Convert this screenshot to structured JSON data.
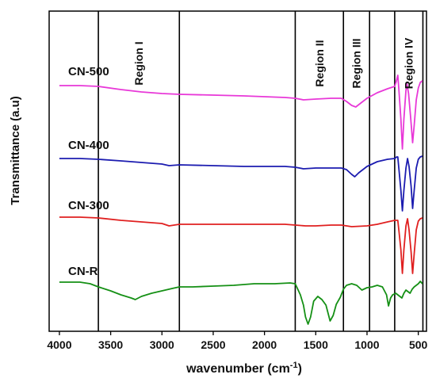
{
  "chart_data": {
    "type": "line",
    "xlabel_main": "wavenumber (cm",
    "xlabel_sup": "-1",
    "xlabel_end": ")",
    "ylabel": "Transmittance (a.u)",
    "xlim": [
      4100,
      420
    ],
    "x_reversed": true,
    "ticks": [
      4000,
      3500,
      3000,
      2500,
      2000,
      1500,
      1000,
      500
    ],
    "tick_labels": [
      "4000",
      "3500",
      "3000",
      "2500",
      "2000",
      "1500",
      "1000",
      "500"
    ],
    "regions": [
      {
        "label": "Region I",
        "from": 3620,
        "to": 2830
      },
      {
        "label": "Region II",
        "from": 1700,
        "to": 1230
      },
      {
        "label": "Region III",
        "from": 1230,
        "to": 975
      },
      {
        "label": "Region IV",
        "from": 730,
        "to": 455
      }
    ],
    "series": [
      {
        "name": "CN-500",
        "color": "#e838d8",
        "points": [
          [
            4000,
            108
          ],
          [
            3800,
            108
          ],
          [
            3620,
            109
          ],
          [
            3400,
            113
          ],
          [
            3200,
            116
          ],
          [
            3000,
            118
          ],
          [
            2830,
            119
          ],
          [
            2500,
            120
          ],
          [
            2200,
            121
          ],
          [
            2000,
            122
          ],
          [
            1800,
            123
          ],
          [
            1700,
            124
          ],
          [
            1620,
            126
          ],
          [
            1500,
            125
          ],
          [
            1350,
            124
          ],
          [
            1250,
            124
          ],
          [
            1200,
            128
          ],
          [
            1150,
            133
          ],
          [
            1110,
            135
          ],
          [
            1060,
            130
          ],
          [
            1000,
            124
          ],
          [
            900,
            117
          ],
          [
            800,
            112
          ],
          [
            730,
            109
          ],
          [
            715,
            103
          ],
          [
            700,
            95
          ],
          [
            690,
            112
          ],
          [
            670,
            150
          ],
          [
            655,
            188
          ],
          [
            640,
            150
          ],
          [
            620,
            114
          ],
          [
            610,
            106
          ],
          [
            595,
            118
          ],
          [
            575,
            148
          ],
          [
            555,
            180
          ],
          [
            540,
            158
          ],
          [
            520,
            126
          ],
          [
            500,
            111
          ],
          [
            480,
            104
          ],
          [
            460,
            102
          ]
        ]
      },
      {
        "name": "CN-400",
        "color": "#1c1cb0",
        "points": [
          [
            4000,
            200
          ],
          [
            3800,
            200
          ],
          [
            3620,
            201
          ],
          [
            3400,
            203
          ],
          [
            3200,
            205
          ],
          [
            3000,
            207
          ],
          [
            2930,
            209
          ],
          [
            2830,
            208
          ],
          [
            2500,
            209
          ],
          [
            2200,
            210
          ],
          [
            2000,
            210
          ],
          [
            1800,
            210
          ],
          [
            1700,
            211
          ],
          [
            1620,
            213
          ],
          [
            1500,
            212
          ],
          [
            1350,
            212
          ],
          [
            1250,
            212
          ],
          [
            1200,
            214
          ],
          [
            1150,
            220
          ],
          [
            1120,
            223
          ],
          [
            1080,
            218
          ],
          [
            1000,
            210
          ],
          [
            900,
            204
          ],
          [
            800,
            201
          ],
          [
            730,
            200
          ],
          [
            710,
            198
          ],
          [
            700,
            198
          ],
          [
            690,
            212
          ],
          [
            670,
            240
          ],
          [
            655,
            266
          ],
          [
            640,
            240
          ],
          [
            620,
            212
          ],
          [
            605,
            200
          ],
          [
            590,
            210
          ],
          [
            570,
            235
          ],
          [
            555,
            263
          ],
          [
            540,
            240
          ],
          [
            520,
            212
          ],
          [
            500,
            201
          ],
          [
            480,
            198
          ],
          [
            460,
            197
          ]
        ]
      },
      {
        "name": "CN-300",
        "color": "#e02020",
        "points": [
          [
            4000,
            274
          ],
          [
            3800,
            274
          ],
          [
            3620,
            275
          ],
          [
            3400,
            278
          ],
          [
            3200,
            280
          ],
          [
            3000,
            282
          ],
          [
            2930,
            285
          ],
          [
            2830,
            283
          ],
          [
            2500,
            283
          ],
          [
            2200,
            283
          ],
          [
            2000,
            283
          ],
          [
            1800,
            283
          ],
          [
            1700,
            284
          ],
          [
            1600,
            285
          ],
          [
            1500,
            285
          ],
          [
            1350,
            284
          ],
          [
            1250,
            284
          ],
          [
            1150,
            286
          ],
          [
            1000,
            285
          ],
          [
            900,
            283
          ],
          [
            800,
            280
          ],
          [
            730,
            278
          ],
          [
            710,
            278
          ],
          [
            700,
            278
          ],
          [
            690,
            290
          ],
          [
            670,
            315
          ],
          [
            655,
            345
          ],
          [
            640,
            315
          ],
          [
            620,
            285
          ],
          [
            605,
            276
          ],
          [
            590,
            290
          ],
          [
            570,
            318
          ],
          [
            555,
            345
          ],
          [
            540,
            320
          ],
          [
            520,
            290
          ],
          [
            500,
            279
          ],
          [
            480,
            276
          ],
          [
            460,
            275
          ]
        ]
      },
      {
        "name": "CN-R",
        "color": "#159015",
        "points": [
          [
            4000,
            356
          ],
          [
            3800,
            356
          ],
          [
            3700,
            358
          ],
          [
            3620,
            362
          ],
          [
            3500,
            367
          ],
          [
            3400,
            372
          ],
          [
            3300,
            376
          ],
          [
            3260,
            378
          ],
          [
            3200,
            374
          ],
          [
            3100,
            370
          ],
          [
            3000,
            367
          ],
          [
            2900,
            364
          ],
          [
            2830,
            362
          ],
          [
            2700,
            362
          ],
          [
            2500,
            361
          ],
          [
            2300,
            360
          ],
          [
            2100,
            358
          ],
          [
            1900,
            358
          ],
          [
            1750,
            357
          ],
          [
            1700,
            358
          ],
          [
            1650,
            372
          ],
          [
            1620,
            385
          ],
          [
            1600,
            400
          ],
          [
            1575,
            409
          ],
          [
            1550,
            400
          ],
          [
            1520,
            380
          ],
          [
            1480,
            374
          ],
          [
            1440,
            378
          ],
          [
            1400,
            385
          ],
          [
            1360,
            405
          ],
          [
            1330,
            398
          ],
          [
            1300,
            384
          ],
          [
            1260,
            375
          ],
          [
            1230,
            365
          ],
          [
            1200,
            360
          ],
          [
            1150,
            358
          ],
          [
            1100,
            360
          ],
          [
            1050,
            366
          ],
          [
            1000,
            363
          ],
          [
            950,
            362
          ],
          [
            900,
            360
          ],
          [
            850,
            362
          ],
          [
            810,
            372
          ],
          [
            790,
            386
          ],
          [
            770,
            376
          ],
          [
            750,
            372
          ],
          [
            720,
            370
          ],
          [
            700,
            372
          ],
          [
            680,
            374
          ],
          [
            660,
            376
          ],
          [
            640,
            370
          ],
          [
            620,
            366
          ],
          [
            600,
            368
          ],
          [
            580,
            370
          ],
          [
            560,
            365
          ],
          [
            540,
            362
          ],
          [
            520,
            360
          ],
          [
            500,
            358
          ],
          [
            480,
            355
          ],
          [
            460,
            358
          ]
        ]
      }
    ]
  }
}
